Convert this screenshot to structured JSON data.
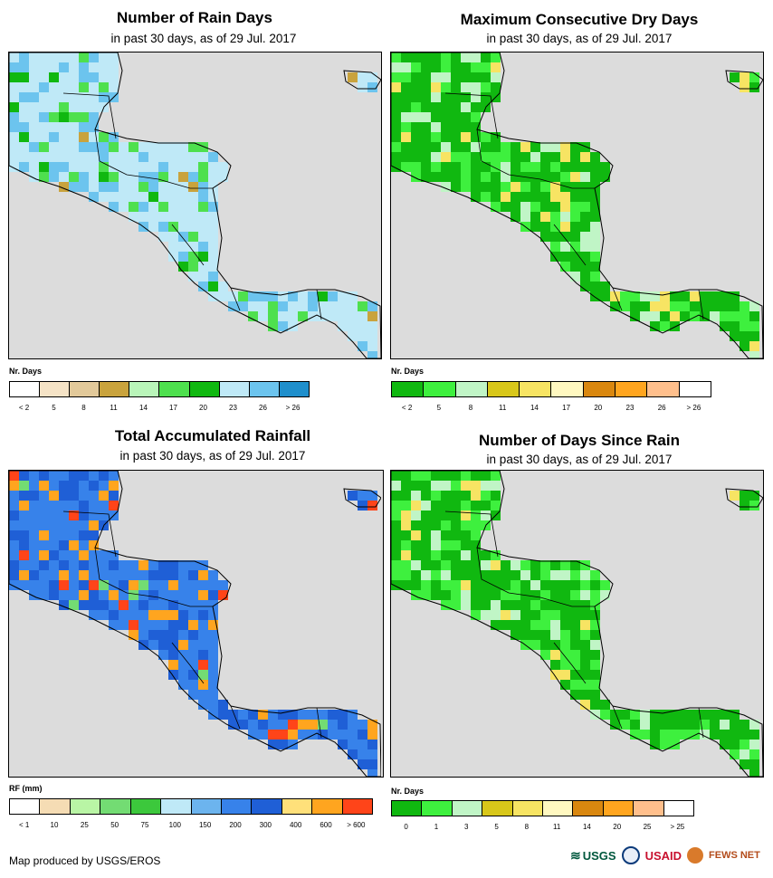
{
  "panels": {
    "rain_days": {
      "title": "Number of Rain Days",
      "subtitle": "in past 30 days, as of 29 Jul. 2017",
      "legend_title": "Nr. Days",
      "legend_colors": [
        "#ffffff",
        "#f5e3c6",
        "#e2c99a",
        "#c9a33d",
        "#b9f5b9",
        "#4ee04e",
        "#10b810",
        "#bfe9f7",
        "#6cc4ee",
        "#1f8fcc"
      ],
      "legend_labels": [
        "< 2",
        "5",
        "8",
        "11",
        "14",
        "17",
        "20",
        "23",
        "26",
        "> 26"
      ],
      "dominant_colors": [
        "#bfe9f7",
        "#6cc4ee",
        "#4ee04e",
        "#10b810",
        "#c9a33d"
      ]
    },
    "dry_days": {
      "title": "Maximum Consecutive Dry Days",
      "subtitle": "in past 30 days, as of 29 Jul. 2017",
      "legend_title": "Nr. Days",
      "legend_colors": [
        "#10b810",
        "#3ef03e",
        "#c0f5c6",
        "#d8c71a",
        "#f7e463",
        "#fff8c0",
        "#d9870f",
        "#ffa51f",
        "#ffbf8c",
        "#ffffff"
      ],
      "legend_labels": [
        "< 2",
        "5",
        "8",
        "11",
        "14",
        "17",
        "20",
        "23",
        "26",
        "> 26"
      ],
      "dominant_colors": [
        "#10b810",
        "#3ef03e",
        "#c0f5c6",
        "#f7e463"
      ]
    },
    "rainfall": {
      "title": "Total Accumulated Rainfall",
      "subtitle": "in past 30 days, as of 29 Jul. 2017",
      "legend_title": "RF (mm)",
      "legend_colors": [
        "#ffffff",
        "#f5dcb4",
        "#b9f5a5",
        "#73dc73",
        "#3cc83c",
        "#bfe9f7",
        "#6cb4ee",
        "#3782ea",
        "#1f5fd6",
        "#ffe07a",
        "#ffa51f",
        "#ff4419"
      ],
      "legend_labels": [
        "< 1",
        "10",
        "25",
        "50",
        "75",
        "100",
        "150",
        "200",
        "300",
        "400",
        "600",
        "> 600"
      ],
      "dominant_colors": [
        "#3782ea",
        "#1f5fd6",
        "#ffa51f",
        "#ff4419",
        "#73dc73"
      ]
    },
    "since_rain": {
      "title": "Number of Days Since Rain",
      "subtitle": "in past 30 days, as of 29 Jul. 2017",
      "legend_title": "Nr. Days",
      "legend_colors": [
        "#10b810",
        "#3ef03e",
        "#c0f5c6",
        "#d8c71a",
        "#f7e463",
        "#fff8c0",
        "#d9870f",
        "#ffa51f",
        "#ffbf8c",
        "#ffffff"
      ],
      "legend_labels": [
        "0",
        "1",
        "3",
        "5",
        "8",
        "11",
        "14",
        "20",
        "25",
        "> 25"
      ],
      "dominant_colors": [
        "#10b810",
        "#3ef03e",
        "#c0f5c6",
        "#f7e463"
      ]
    }
  },
  "credit": "Map produced by USGS/EROS",
  "logos": {
    "usgs": "USGS",
    "usaid": "USAID",
    "fews": "FEWS NET"
  },
  "colors": {
    "ocean": "#dcdcdc",
    "border": "#000000"
  }
}
